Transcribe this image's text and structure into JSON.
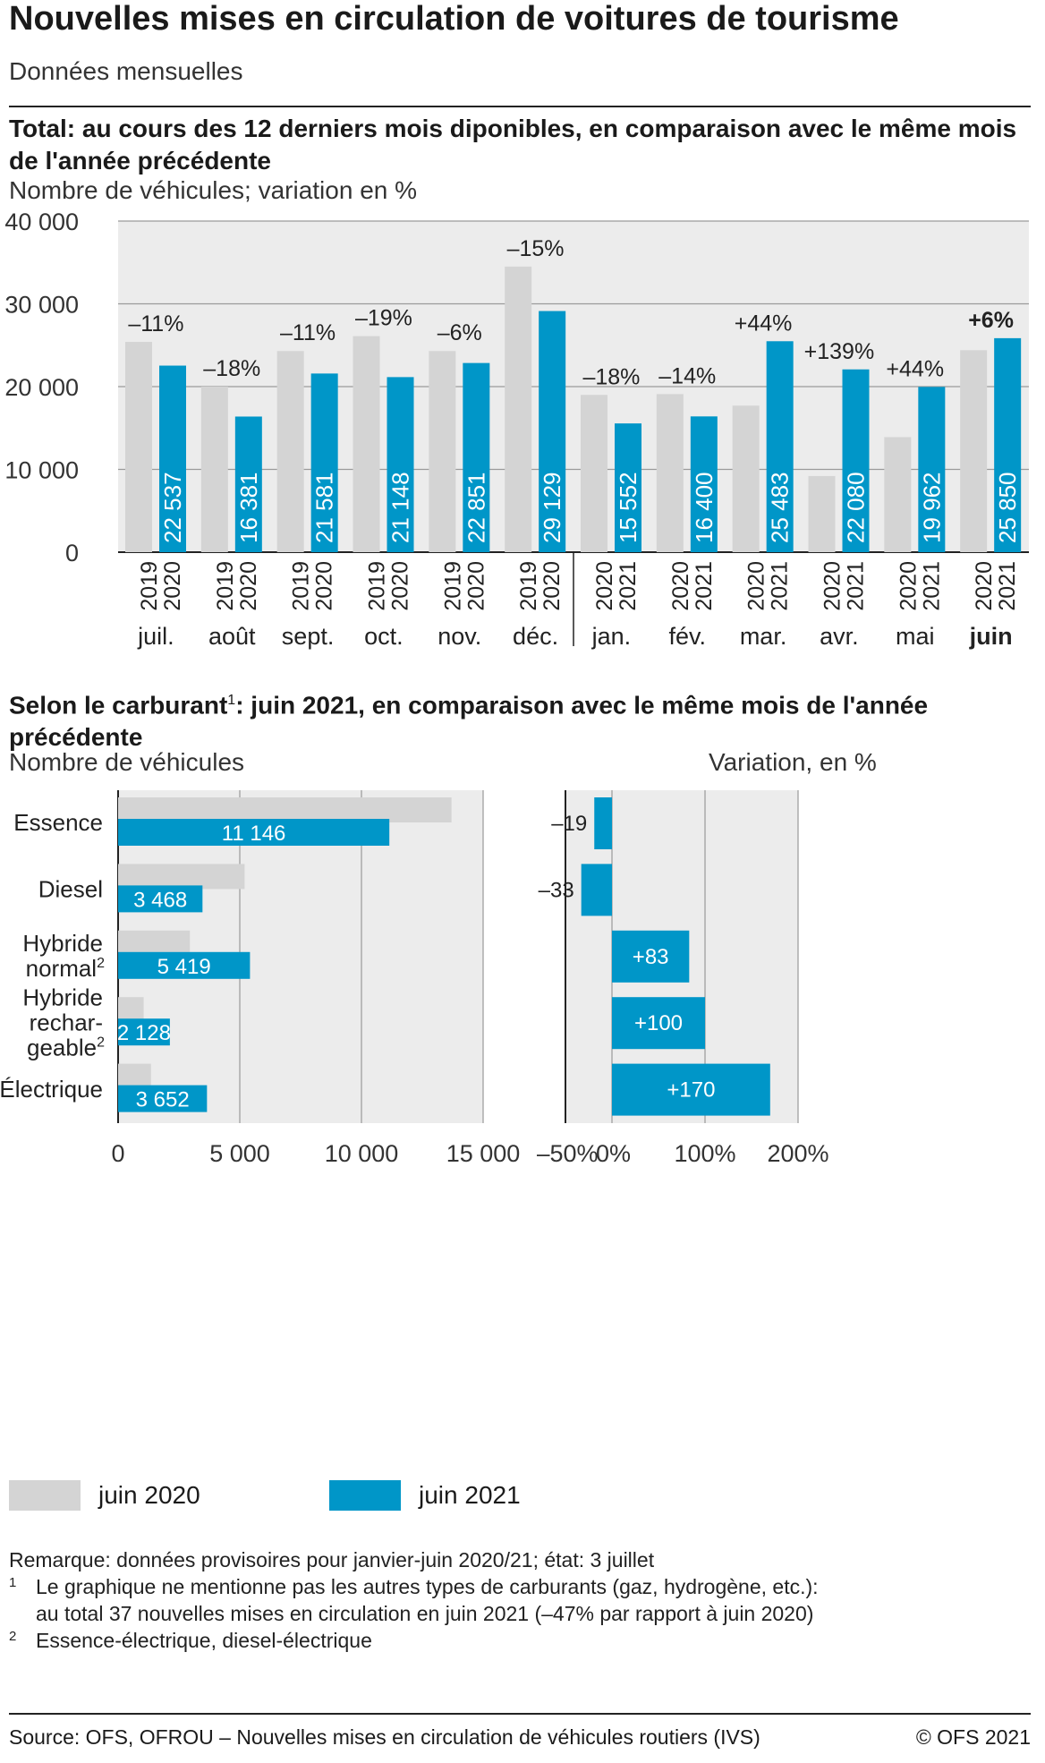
{
  "header": {
    "title": "Nouvelles mises en circulation de voitures de tourisme",
    "subtitle": "Données mensuelles"
  },
  "section1": {
    "heading": "Total: au cours des 12 derniers mois diponibles, en comparaison avec le même mois de l'année précédente",
    "axis_caption": "Nombre de véhicules; variation en %"
  },
  "section2": {
    "heading_part1": "Selon le carburant",
    "heading_sup": "1",
    "heading_part2": ": juin 2021, en comparaison avec le même mois de l'année précédente",
    "left_caption": "Nombre de véhicules",
    "right_caption": "Variation, en %"
  },
  "legend": {
    "prev_label": "juin 2020",
    "curr_label": "juin 2021"
  },
  "colors": {
    "prev": "#d4d4d4",
    "curr": "#0096c8",
    "plot_bg": "#ececec",
    "grid": "#9a9a9a"
  },
  "chart_data": [
    {
      "type": "bar",
      "ylim": [
        0,
        40000
      ],
      "yticks": [
        "0",
        "10 000",
        "20 000",
        "30 000",
        "40 000"
      ],
      "categories": [
        "juil.",
        "août",
        "sept.",
        "oct.",
        "nov.",
        "déc.",
        "jan.",
        "fév.",
        "mar.",
        "avr.",
        "mai",
        "juin"
      ],
      "year_pairs": [
        [
          "2019",
          "2020"
        ],
        [
          "2019",
          "2020"
        ],
        [
          "2019",
          "2020"
        ],
        [
          "2019",
          "2020"
        ],
        [
          "2019",
          "2020"
        ],
        [
          "2019",
          "2020"
        ],
        [
          "2020",
          "2021"
        ],
        [
          "2020",
          "2021"
        ],
        [
          "2020",
          "2021"
        ],
        [
          "2020",
          "2021"
        ],
        [
          "2020",
          "2021"
        ],
        [
          "2020",
          "2021"
        ]
      ],
      "highlight_category": "juin",
      "series": [
        {
          "values": [
            25400,
            20000,
            24300,
            26100,
            24300,
            34500,
            19000,
            19100,
            17700,
            9200,
            13900,
            24400
          ]
        },
        {
          "values": [
            22537,
            16381,
            21581,
            21148,
            22851,
            29129,
            15552,
            16400,
            25483,
            22080,
            19962,
            25850
          ],
          "labels": [
            "22 537",
            "16 381",
            "21 581",
            "21 148",
            "22 851",
            "29 129",
            "15 552",
            "16 400",
            "25 483",
            "22 080",
            "19 962",
            "25 850"
          ]
        }
      ],
      "annotations": [
        "–11%",
        "–18%",
        "–11%",
        "–19%",
        "–6%",
        "–15%",
        "–18%",
        "–14%",
        "+44%",
        "+139%",
        "+44%",
        "+6%"
      ]
    },
    {
      "type": "bar",
      "orientation": "horizontal",
      "xlim": [
        0,
        15000
      ],
      "xticks": [
        "0",
        "5 000",
        "10 000",
        "15 000"
      ],
      "categories": [
        [
          "Essence"
        ],
        [
          "Diesel"
        ],
        [
          "Hybride",
          "normal"
        ],
        [
          "Hybride",
          "rechar-",
          "geable"
        ],
        [
          "Électrique"
        ]
      ],
      "category_sup": [
        "",
        "",
        "2",
        "2",
        ""
      ],
      "series": [
        {
          "name": "juin 2020",
          "values": [
            13700,
            5200,
            2950,
            1050,
            1350
          ]
        },
        {
          "name": "juin 2021",
          "values": [
            11146,
            3468,
            5419,
            2128,
            3652
          ],
          "labels": [
            "11 146",
            "3 468",
            "5 419",
            "2 128",
            "3 652"
          ]
        }
      ]
    },
    {
      "type": "bar",
      "orientation": "horizontal",
      "xlim": [
        -50,
        200
      ],
      "xticks": [
        "–50%",
        "0%",
        "100%",
        "200%"
      ],
      "values": [
        -19,
        -33,
        83,
        100,
        170
      ],
      "labels": [
        "–19",
        "–33",
        "+83",
        "+100",
        "+170"
      ]
    }
  ],
  "notes": {
    "remark": "Remarque: données provisoires pour janvier-juin 2020/21; état: 3 juillet",
    "fn1_num": "1",
    "fn1_line1": "Le graphique ne mentionne pas les autres types de carburants (gaz, hydrogène, etc.):",
    "fn1_line2": "au total 37 nouvelles mises en circulation en juin 2021 (–47% par rapport à juin 2020)",
    "fn2_num": "2",
    "fn2_line1": "Essence-électrique, diesel-électrique"
  },
  "footer": {
    "source": "Source: OFS, OFROU – Nouvelles mises en circulation de véhicules routiers (IVS)",
    "copyright": "© OFS 2021"
  }
}
